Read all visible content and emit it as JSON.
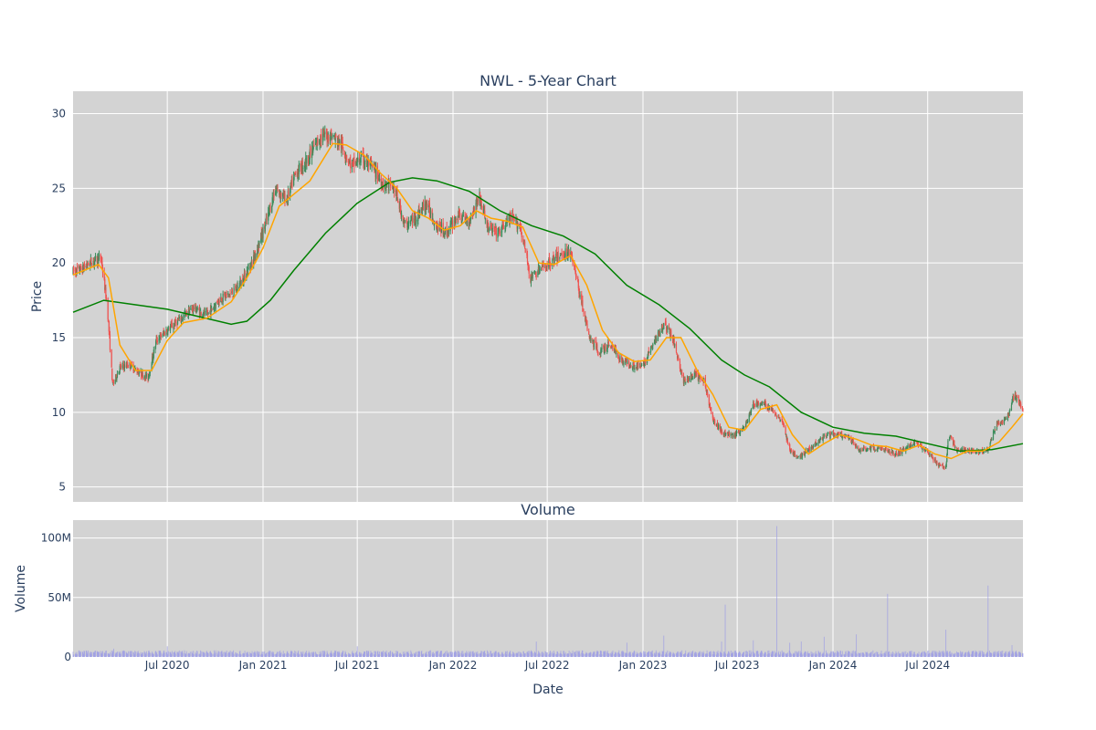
{
  "chart_data": [
    {
      "type": "candlestick",
      "title": "NWL - 5-Year Chart",
      "ylabel": "Price",
      "xlim": [
        "2020-01-02",
        "2024-12-31"
      ],
      "ylim": [
        4,
        31.5
      ],
      "yticks": [
        5,
        10,
        15,
        20,
        25,
        30
      ],
      "xticks": [
        {
          "date": "2020-07-01",
          "label": "Jul 2020"
        },
        {
          "date": "2021-01-01",
          "label": "Jan 2021"
        },
        {
          "date": "2021-07-01",
          "label": "Jul 2021"
        },
        {
          "date": "2022-01-01",
          "label": "Jan 2022"
        },
        {
          "date": "2022-07-01",
          "label": "Jul 2022"
        },
        {
          "date": "2023-01-01",
          "label": "Jan 2023"
        },
        {
          "date": "2023-07-01",
          "label": "Jul 2023"
        },
        {
          "date": "2024-01-01",
          "label": "Jan 2024"
        },
        {
          "date": "2024-07-01",
          "label": "Jul 2024"
        }
      ],
      "grid": true,
      "colors": {
        "plot_bg": "#d3d3d3",
        "grid": "#ffffff",
        "up": "#3d8c5c",
        "down": "#ef5350",
        "ma_short": "#ffa500",
        "ma_long": "#008000"
      },
      "close": [
        [
          "2020-01-02",
          19.4
        ],
        [
          "2020-01-20",
          19.6
        ],
        [
          "2020-02-07",
          20.1
        ],
        [
          "2020-02-25",
          20.3
        ],
        [
          "2020-03-08",
          17.0
        ],
        [
          "2020-03-18",
          11.8
        ],
        [
          "2020-04-01",
          13.0
        ],
        [
          "2020-04-20",
          13.2
        ],
        [
          "2020-05-10",
          12.6
        ],
        [
          "2020-05-25",
          12.3
        ],
        [
          "2020-06-10",
          14.8
        ],
        [
          "2020-07-01",
          15.5
        ],
        [
          "2020-07-25",
          16.2
        ],
        [
          "2020-08-20",
          17.0
        ],
        [
          "2020-09-15",
          16.5
        ],
        [
          "2020-10-10",
          17.6
        ],
        [
          "2020-11-05",
          18.0
        ],
        [
          "2020-11-25",
          19.0
        ],
        [
          "2020-12-15",
          20.4
        ],
        [
          "2021-01-05",
          22.5
        ],
        [
          "2021-01-25",
          25.0
        ],
        [
          "2021-02-15",
          24.2
        ],
        [
          "2021-03-05",
          26.0
        ],
        [
          "2021-03-25",
          26.8
        ],
        [
          "2021-04-20",
          28.4
        ],
        [
          "2021-05-10",
          28.6
        ],
        [
          "2021-05-30",
          28.0
        ],
        [
          "2021-06-20",
          26.5
        ],
        [
          "2021-07-10",
          27.0
        ],
        [
          "2021-07-30",
          26.4
        ],
        [
          "2021-08-20",
          25.3
        ],
        [
          "2021-09-10",
          25.0
        ],
        [
          "2021-10-01",
          22.5
        ],
        [
          "2021-10-20",
          23.0
        ],
        [
          "2021-11-10",
          24.0
        ],
        [
          "2021-12-01",
          22.5
        ],
        [
          "2021-12-20",
          22.0
        ],
        [
          "2022-01-10",
          23.2
        ],
        [
          "2022-02-01",
          22.8
        ],
        [
          "2022-02-20",
          24.5
        ],
        [
          "2022-03-10",
          22.3
        ],
        [
          "2022-03-30",
          22.0
        ],
        [
          "2022-04-20",
          23.0
        ],
        [
          "2022-05-10",
          22.5
        ],
        [
          "2022-05-30",
          19.0
        ],
        [
          "2022-06-15",
          19.5
        ],
        [
          "2022-07-05",
          20.0
        ],
        [
          "2022-07-25",
          20.5
        ],
        [
          "2022-08-15",
          20.8
        ],
        [
          "2022-09-01",
          18.0
        ],
        [
          "2022-09-20",
          15.0
        ],
        [
          "2022-10-10",
          14.0
        ],
        [
          "2022-10-30",
          14.6
        ],
        [
          "2022-11-20",
          13.5
        ],
        [
          "2022-12-10",
          13.2
        ],
        [
          "2022-12-30",
          13.0
        ],
        [
          "2023-01-20",
          14.5
        ],
        [
          "2023-02-10",
          16.0
        ],
        [
          "2023-03-01",
          14.8
        ],
        [
          "2023-03-20",
          12.0
        ],
        [
          "2023-04-10",
          12.5
        ],
        [
          "2023-04-30",
          12.0
        ],
        [
          "2023-05-15",
          9.5
        ],
        [
          "2023-06-05",
          8.6
        ],
        [
          "2023-06-25",
          8.4
        ],
        [
          "2023-07-15",
          9.0
        ],
        [
          "2023-08-01",
          10.5
        ],
        [
          "2023-08-20",
          10.6
        ],
        [
          "2023-09-10",
          10.0
        ],
        [
          "2023-09-25",
          9.5
        ],
        [
          "2023-10-10",
          7.5
        ],
        [
          "2023-10-25",
          6.9
        ],
        [
          "2023-11-15",
          7.5
        ],
        [
          "2023-12-01",
          8.0
        ],
        [
          "2023-12-20",
          8.5
        ],
        [
          "2024-01-10",
          8.5
        ],
        [
          "2024-01-30",
          8.3
        ],
        [
          "2024-02-20",
          7.5
        ],
        [
          "2024-03-15",
          7.6
        ],
        [
          "2024-04-10",
          7.5
        ],
        [
          "2024-05-01",
          7.2
        ],
        [
          "2024-05-20",
          7.6
        ],
        [
          "2024-06-10",
          8.0
        ],
        [
          "2024-06-30",
          7.4
        ],
        [
          "2024-07-20",
          6.5
        ],
        [
          "2024-08-05",
          6.3
        ],
        [
          "2024-08-10",
          8.6
        ],
        [
          "2024-08-25",
          7.5
        ],
        [
          "2024-09-15",
          7.4
        ],
        [
          "2024-10-05",
          7.4
        ],
        [
          "2024-10-25",
          7.5
        ],
        [
          "2024-11-10",
          9.2
        ],
        [
          "2024-11-30",
          9.5
        ],
        [
          "2024-12-15",
          11.2
        ],
        [
          "2024-12-31",
          10.1
        ]
      ],
      "ma_short": [
        [
          "2020-01-02",
          19.2
        ],
        [
          "2020-02-20",
          19.9
        ],
        [
          "2020-03-10",
          19.0
        ],
        [
          "2020-04-01",
          14.5
        ],
        [
          "2020-05-01",
          12.8
        ],
        [
          "2020-06-01",
          12.8
        ],
        [
          "2020-07-01",
          14.8
        ],
        [
          "2020-08-01",
          16.0
        ],
        [
          "2020-09-15",
          16.3
        ],
        [
          "2020-11-01",
          17.4
        ],
        [
          "2020-12-01",
          19.0
        ],
        [
          "2021-01-01",
          21.0
        ],
        [
          "2021-02-01",
          23.8
        ],
        [
          "2021-03-01",
          24.6
        ],
        [
          "2021-04-01",
          25.5
        ],
        [
          "2021-05-15",
          28.0
        ],
        [
          "2021-06-10",
          27.9
        ],
        [
          "2021-07-15",
          27.2
        ],
        [
          "2021-08-15",
          26.0
        ],
        [
          "2021-09-15",
          25.0
        ],
        [
          "2021-10-15",
          23.5
        ],
        [
          "2021-11-15",
          23.0
        ],
        [
          "2021-12-15",
          22.2
        ],
        [
          "2022-01-15",
          22.5
        ],
        [
          "2022-02-15",
          23.5
        ],
        [
          "2022-03-15",
          23.0
        ],
        [
          "2022-04-15",
          22.8
        ],
        [
          "2022-05-15",
          22.4
        ],
        [
          "2022-06-15",
          20.0
        ],
        [
          "2022-07-15",
          19.9
        ],
        [
          "2022-08-15",
          20.5
        ],
        [
          "2022-09-15",
          18.5
        ],
        [
          "2022-10-15",
          15.5
        ],
        [
          "2022-11-15",
          14.0
        ],
        [
          "2022-12-15",
          13.4
        ],
        [
          "2023-01-15",
          13.5
        ],
        [
          "2023-02-15",
          15.0
        ],
        [
          "2023-03-15",
          15.0
        ],
        [
          "2023-04-15",
          12.8
        ],
        [
          "2023-05-15",
          11.2
        ],
        [
          "2023-06-15",
          9.0
        ],
        [
          "2023-07-15",
          8.8
        ],
        [
          "2023-08-15",
          10.2
        ],
        [
          "2023-09-15",
          10.5
        ],
        [
          "2023-10-15",
          8.5
        ],
        [
          "2023-11-15",
          7.2
        ],
        [
          "2023-12-15",
          7.9
        ],
        [
          "2024-01-15",
          8.5
        ],
        [
          "2024-02-15",
          8.2
        ],
        [
          "2024-03-15",
          7.8
        ],
        [
          "2024-04-15",
          7.7
        ],
        [
          "2024-05-15",
          7.4
        ],
        [
          "2024-06-15",
          7.8
        ],
        [
          "2024-07-15",
          7.2
        ],
        [
          "2024-08-15",
          6.9
        ],
        [
          "2024-09-15",
          7.4
        ],
        [
          "2024-10-15",
          7.4
        ],
        [
          "2024-11-15",
          8.0
        ],
        [
          "2024-12-10",
          9.0
        ],
        [
          "2024-12-31",
          9.9
        ]
      ],
      "ma_long": [
        [
          "2020-01-02",
          16.7
        ],
        [
          "2020-03-01",
          17.5
        ],
        [
          "2020-05-01",
          17.2
        ],
        [
          "2020-07-01",
          16.9
        ],
        [
          "2020-09-01",
          16.4
        ],
        [
          "2020-11-01",
          15.9
        ],
        [
          "2020-12-01",
          16.1
        ],
        [
          "2021-01-15",
          17.5
        ],
        [
          "2021-03-01",
          19.5
        ],
        [
          "2021-05-01",
          22.0
        ],
        [
          "2021-07-01",
          24.0
        ],
        [
          "2021-09-01",
          25.4
        ],
        [
          "2021-10-15",
          25.7
        ],
        [
          "2021-12-01",
          25.5
        ],
        [
          "2022-02-01",
          24.8
        ],
        [
          "2022-04-01",
          23.5
        ],
        [
          "2022-06-01",
          22.5
        ],
        [
          "2022-08-01",
          21.8
        ],
        [
          "2022-10-01",
          20.6
        ],
        [
          "2022-12-01",
          18.5
        ],
        [
          "2023-02-01",
          17.2
        ],
        [
          "2023-04-01",
          15.6
        ],
        [
          "2023-06-01",
          13.5
        ],
        [
          "2023-07-15",
          12.5
        ],
        [
          "2023-09-01",
          11.7
        ],
        [
          "2023-11-01",
          10.0
        ],
        [
          "2024-01-01",
          9.0
        ],
        [
          "2024-03-01",
          8.6
        ],
        [
          "2024-05-01",
          8.4
        ],
        [
          "2024-07-01",
          7.9
        ],
        [
          "2024-09-01",
          7.4
        ],
        [
          "2024-11-01",
          7.5
        ],
        [
          "2024-12-31",
          7.9
        ]
      ]
    },
    {
      "type": "bar",
      "title": "Volume",
      "xlabel": "Date",
      "ylabel": "Volume",
      "ylim": [
        0,
        115000000
      ],
      "yticks": [
        {
          "value": 0,
          "label": "0"
        },
        {
          "value": 50000000,
          "label": "50M"
        },
        {
          "value": 100000000,
          "label": "100M"
        }
      ],
      "baseline": 4000000,
      "color": "#9a9ae6",
      "spikes": [
        [
          "2020-03-20",
          7000000
        ],
        [
          "2020-07-01",
          9000000
        ],
        [
          "2021-07-01",
          9000000
        ],
        [
          "2022-01-30",
          9000000
        ],
        [
          "2022-06-10",
          13000000
        ],
        [
          "2022-12-01",
          12000000
        ],
        [
          "2023-02-10",
          18000000
        ],
        [
          "2023-06-01",
          13000000
        ],
        [
          "2023-06-08",
          44000000
        ],
        [
          "2023-08-01",
          14000000
        ],
        [
          "2023-09-15",
          110000000
        ],
        [
          "2023-10-10",
          12000000
        ],
        [
          "2023-11-01",
          13000000
        ],
        [
          "2023-12-15",
          17000000
        ],
        [
          "2024-02-15",
          19000000
        ],
        [
          "2024-04-15",
          53000000
        ],
        [
          "2024-08-05",
          23000000
        ],
        [
          "2024-10-25",
          60000000
        ],
        [
          "2024-12-10",
          10000000
        ]
      ]
    }
  ]
}
